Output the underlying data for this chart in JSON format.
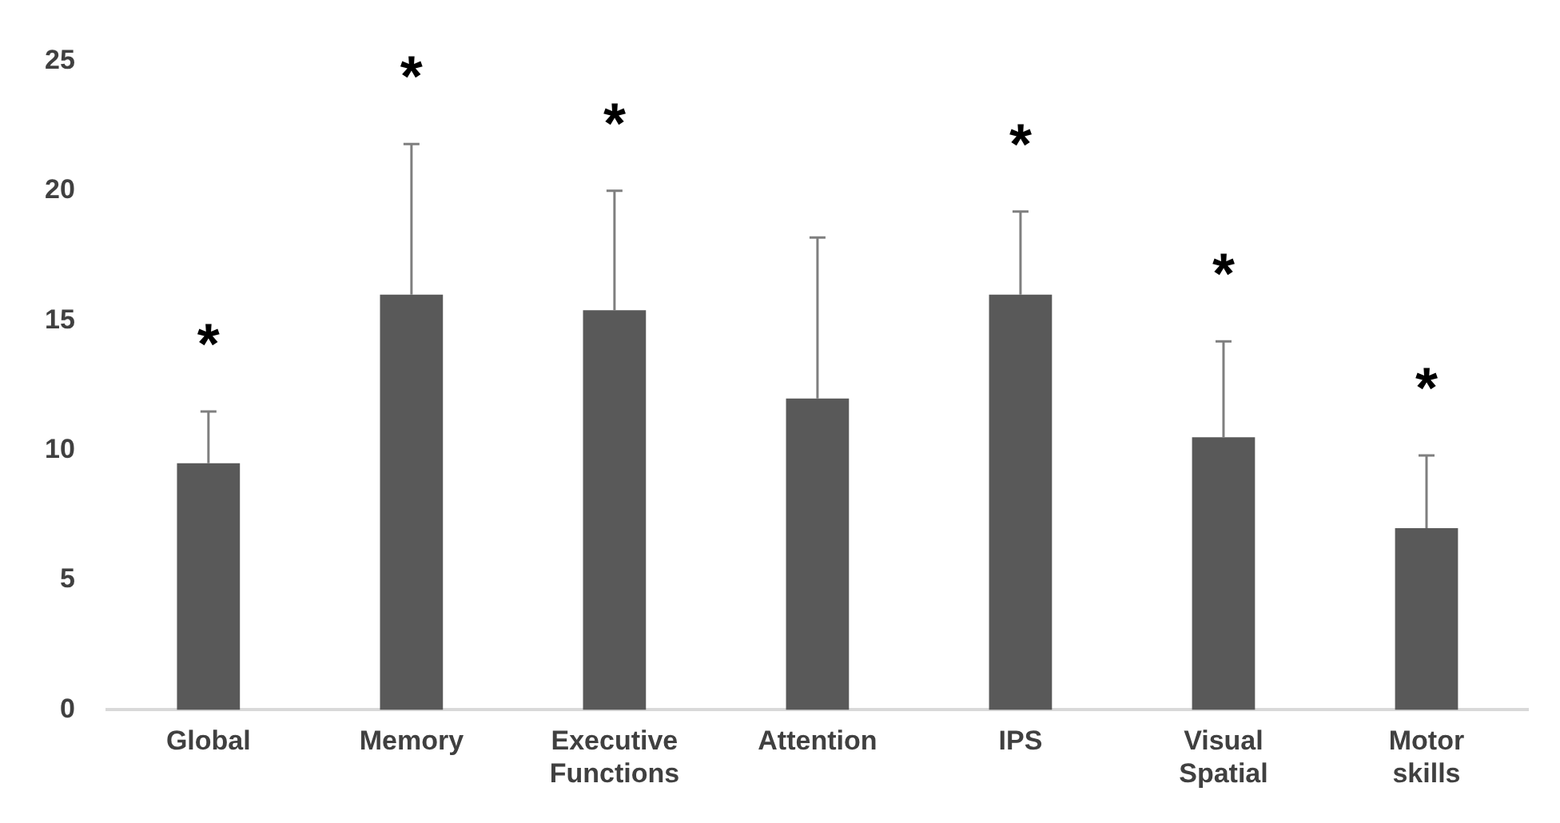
{
  "chart_data": {
    "type": "bar",
    "categories": [
      "Global",
      "Memory",
      "Executive Functions",
      "Attention",
      "IPS",
      "Visual Spatial",
      "Motor skills"
    ],
    "values": [
      9.5,
      16.0,
      15.4,
      12.0,
      16.0,
      10.5,
      7.0
    ],
    "errors": [
      2.0,
      5.8,
      4.6,
      6.2,
      3.2,
      3.7,
      2.8
    ],
    "color": "#595959",
    "ylim": [
      0,
      25
    ],
    "yticks": [
      0,
      5,
      10,
      15,
      20,
      25
    ],
    "grid": false,
    "legend": false,
    "annotations": [
      {
        "text": "*",
        "x": "Global",
        "y": 11.5
      },
      {
        "text": "*",
        "x": "Memory",
        "y": 21.8
      },
      {
        "text": "*",
        "x": "Executive Functions",
        "y": 20.0
      },
      {
        "text": "*",
        "x": "IPS",
        "y": 19.2
      },
      {
        "text": "*",
        "x": "Visual Spatial",
        "y": 14.2
      },
      {
        "text": "*",
        "x": "Motor skills",
        "y": 9.8
      }
    ]
  }
}
